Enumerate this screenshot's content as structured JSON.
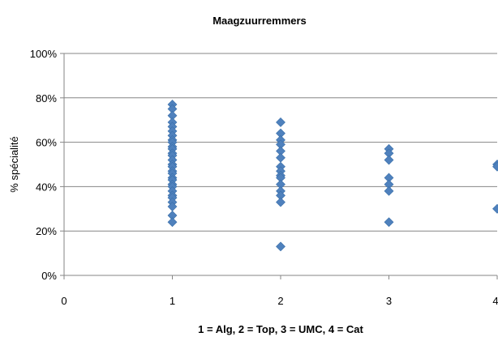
{
  "chart_data": {
    "type": "scatter",
    "title": "Maagzuurremmers",
    "xlabel": "1 = Alg, 2 = Top, 3 = UMC, 4 = Cat",
    "ylabel": "% spécialité",
    "xlim": [
      0,
      4
    ],
    "ylim": [
      0,
      1
    ],
    "x_ticks": [
      "0",
      "1",
      "2",
      "3",
      "4"
    ],
    "y_ticks": [
      "0%",
      "20%",
      "40%",
      "60%",
      "80%",
      "100%"
    ],
    "grid": "horizontal",
    "legend": "none",
    "marker": "diamond",
    "marker_color": "#4F81BD",
    "points": [
      {
        "x": 1,
        "y": 0.77
      },
      {
        "x": 1,
        "y": 0.75
      },
      {
        "x": 1,
        "y": 0.72
      },
      {
        "x": 1,
        "y": 0.69
      },
      {
        "x": 1,
        "y": 0.67
      },
      {
        "x": 1,
        "y": 0.65
      },
      {
        "x": 1,
        "y": 0.63
      },
      {
        "x": 1,
        "y": 0.61
      },
      {
        "x": 1,
        "y": 0.6
      },
      {
        "x": 1,
        "y": 0.58
      },
      {
        "x": 1,
        "y": 0.57
      },
      {
        "x": 1,
        "y": 0.55
      },
      {
        "x": 1,
        "y": 0.54
      },
      {
        "x": 1,
        "y": 0.52
      },
      {
        "x": 1,
        "y": 0.5
      },
      {
        "x": 1,
        "y": 0.49
      },
      {
        "x": 1,
        "y": 0.47
      },
      {
        "x": 1,
        "y": 0.46
      },
      {
        "x": 1,
        "y": 0.44
      },
      {
        "x": 1,
        "y": 0.43
      },
      {
        "x": 1,
        "y": 0.41
      },
      {
        "x": 1,
        "y": 0.4
      },
      {
        "x": 1,
        "y": 0.38
      },
      {
        "x": 1,
        "y": 0.36
      },
      {
        "x": 1,
        "y": 0.35
      },
      {
        "x": 1,
        "y": 0.33
      },
      {
        "x": 1,
        "y": 0.31
      },
      {
        "x": 1,
        "y": 0.27
      },
      {
        "x": 1,
        "y": 0.24
      },
      {
        "x": 2,
        "y": 0.69
      },
      {
        "x": 2,
        "y": 0.64
      },
      {
        "x": 2,
        "y": 0.61
      },
      {
        "x": 2,
        "y": 0.59
      },
      {
        "x": 2,
        "y": 0.56
      },
      {
        "x": 2,
        "y": 0.53
      },
      {
        "x": 2,
        "y": 0.49
      },
      {
        "x": 2,
        "y": 0.47
      },
      {
        "x": 2,
        "y": 0.45
      },
      {
        "x": 2,
        "y": 0.44
      },
      {
        "x": 2,
        "y": 0.41
      },
      {
        "x": 2,
        "y": 0.38
      },
      {
        "x": 2,
        "y": 0.36
      },
      {
        "x": 2,
        "y": 0.33
      },
      {
        "x": 2,
        "y": 0.13
      },
      {
        "x": 3,
        "y": 0.57
      },
      {
        "x": 3,
        "y": 0.55
      },
      {
        "x": 3,
        "y": 0.52
      },
      {
        "x": 3,
        "y": 0.44
      },
      {
        "x": 3,
        "y": 0.41
      },
      {
        "x": 3,
        "y": 0.38
      },
      {
        "x": 3,
        "y": 0.24
      },
      {
        "x": 4,
        "y": 0.5
      },
      {
        "x": 4,
        "y": 0.49
      },
      {
        "x": 4,
        "y": 0.3
      }
    ]
  }
}
